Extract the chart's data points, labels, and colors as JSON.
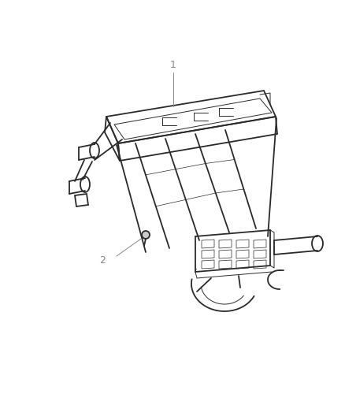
{
  "bg_color": "#ffffff",
  "line_color": "#2a2a2a",
  "label_color": "#888888",
  "label_1": "1",
  "label_2": "2",
  "lw_main": 1.3,
  "lw_thin": 0.7,
  "lw_xtra": 0.5
}
